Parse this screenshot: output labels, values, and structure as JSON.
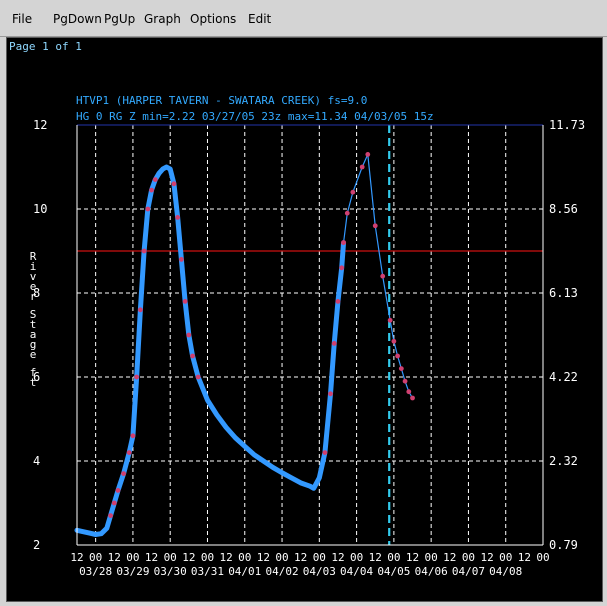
{
  "menu": {
    "items": [
      "File",
      "PgDown",
      "PgUp",
      "Graph",
      "Options",
      "Edit"
    ]
  },
  "page_label": "Page 1 of 1",
  "colors": {
    "background": "#000000",
    "grid": "#ffffff",
    "axis": "#ffffff",
    "series_line": "#3399ff",
    "series_marker": "#d04070",
    "flood_line": "#cc1111",
    "top_line": "#2233aa",
    "current_time": "#33ccee",
    "title": "#33aaff",
    "subtitle": "#33aaff"
  },
  "chart_data": {
    "type": "line",
    "title": "HTVP1 (HARPER TAVERN - SWATARA CREEK) fs=9.0",
    "subtitle": "HG 0 RG Z min=2.22 03/27/05 23z max=11.34 04/03/05 15z",
    "ylabel": "River Stage ft",
    "ylim": [
      2,
      12
    ],
    "yticks": [
      "2",
      "4",
      "6",
      "8",
      "10",
      "12"
    ],
    "y2ticks": [
      "0.79",
      "2.32",
      "4.22",
      "6.13",
      "8.56",
      "11.73"
    ],
    "xlim": [
      0,
      25
    ],
    "xtick_hours": [
      "12",
      "00",
      "12",
      "00",
      "12",
      "00",
      "12",
      "00",
      "12",
      "00",
      "12",
      "00",
      "12",
      "00",
      "12",
      "00",
      "12",
      "00",
      "12",
      "00",
      "12",
      "00",
      "12",
      "00",
      "12",
      "00"
    ],
    "xtick_dates": [
      "03/28",
      "03/29",
      "03/30",
      "03/31",
      "04/01",
      "04/02",
      "04/03",
      "04/04",
      "04/05",
      "04/06",
      "04/07",
      "04/08"
    ],
    "flood_stage": 9.0,
    "current_time_x": 16.75,
    "series": [
      {
        "observed": [
          [
            0,
            2.35
          ],
          [
            0.3,
            2.32
          ],
          [
            0.7,
            2.28
          ],
          [
            1.0,
            2.25
          ],
          [
            1.3,
            2.27
          ],
          [
            1.6,
            2.4
          ],
          [
            1.8,
            2.7
          ],
          [
            2.0,
            3.0
          ],
          [
            2.2,
            3.3
          ],
          [
            2.5,
            3.7
          ],
          [
            2.8,
            4.2
          ],
          [
            3.0,
            4.6
          ],
          [
            3.2,
            6.0
          ],
          [
            3.4,
            7.6
          ],
          [
            3.6,
            9.0
          ],
          [
            3.8,
            10.0
          ],
          [
            4.0,
            10.45
          ],
          [
            4.2,
            10.7
          ],
          [
            4.4,
            10.85
          ],
          [
            4.6,
            10.95
          ],
          [
            4.8,
            11.0
          ],
          [
            5.0,
            10.95
          ],
          [
            5.2,
            10.6
          ],
          [
            5.4,
            9.8
          ],
          [
            5.6,
            8.8
          ],
          [
            5.8,
            7.8
          ],
          [
            6.0,
            7.0
          ],
          [
            6.2,
            6.5
          ],
          [
            6.5,
            6.0
          ],
          [
            7.0,
            5.45
          ],
          [
            7.5,
            5.1
          ],
          [
            8.0,
            4.8
          ],
          [
            8.5,
            4.55
          ],
          [
            9.0,
            4.35
          ],
          [
            9.5,
            4.15
          ],
          [
            10.0,
            4.0
          ],
          [
            10.5,
            3.85
          ],
          [
            11.0,
            3.72
          ],
          [
            11.5,
            3.6
          ],
          [
            12.0,
            3.48
          ],
          [
            12.5,
            3.4
          ],
          [
            12.7,
            3.35
          ],
          [
            13.0,
            3.6
          ],
          [
            13.3,
            4.2
          ],
          [
            13.6,
            5.6
          ],
          [
            13.8,
            6.8
          ],
          [
            14.0,
            7.8
          ],
          [
            14.2,
            8.6
          ],
          [
            14.3,
            9.2
          ]
        ],
        "forecast": [
          [
            14.3,
            9.2
          ],
          [
            14.5,
            9.9
          ],
          [
            14.8,
            10.4
          ],
          [
            15.3,
            11.0
          ],
          [
            15.6,
            11.3
          ],
          [
            16.0,
            9.6
          ],
          [
            16.4,
            8.4
          ],
          [
            16.8,
            7.35
          ],
          [
            17.0,
            6.85
          ],
          [
            17.2,
            6.5
          ],
          [
            17.4,
            6.2
          ],
          [
            17.6,
            5.9
          ],
          [
            17.8,
            5.65
          ],
          [
            18.0,
            5.5
          ]
        ]
      }
    ],
    "grid": true,
    "legend": "none"
  }
}
